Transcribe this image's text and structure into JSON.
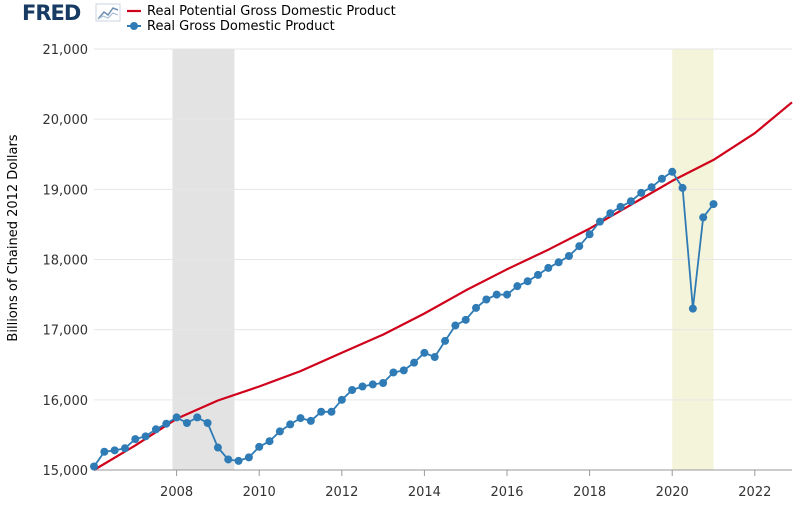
{
  "logo": {
    "text": "FRED",
    "icon": "line-chart-icon",
    "accent": "#173b63"
  },
  "colors": {
    "potential": "#d0021b",
    "actual": "#2f7bb5",
    "grid": "#e6e6e6",
    "recession_2008": "#e3e3e3",
    "recession_2020": "#f4f4da"
  },
  "chart_data": {
    "type": "line",
    "ylabel": "Billions of Chained 2012 Dollars",
    "xlim": [
      2006.0,
      2022.9
    ],
    "ylim": [
      15000,
      21000
    ],
    "x_ticks": [
      2008,
      2010,
      2012,
      2014,
      2016,
      2018,
      2020,
      2022
    ],
    "y_ticks": [
      15000,
      16000,
      17000,
      18000,
      19000,
      20000,
      21000
    ],
    "y_tick_labels": [
      "15,000",
      "16,000",
      "17,000",
      "18,000",
      "19,000",
      "20,000",
      "21,000"
    ],
    "grid": true,
    "legend": "top-left",
    "recessions": [
      [
        2007.9,
        2009.4
      ],
      [
        2020.0,
        2021.0
      ]
    ],
    "series": [
      {
        "name": "Real Potential Gross Domestic Product",
        "marker": false,
        "points": [
          [
            2006.0,
            15000
          ],
          [
            2007.0,
            15350
          ],
          [
            2008.0,
            15730
          ],
          [
            2009.0,
            15990
          ],
          [
            2010.0,
            16190
          ],
          [
            2011.0,
            16410
          ],
          [
            2012.0,
            16670
          ],
          [
            2013.0,
            16930
          ],
          [
            2014.0,
            17230
          ],
          [
            2015.0,
            17560
          ],
          [
            2016.0,
            17860
          ],
          [
            2017.0,
            18140
          ],
          [
            2018.0,
            18440
          ],
          [
            2019.0,
            18780
          ],
          [
            2020.0,
            19120
          ],
          [
            2021.0,
            19420
          ],
          [
            2022.0,
            19800
          ],
          [
            2022.9,
            20240
          ]
        ]
      },
      {
        "name": "Real Gross Domestic Product",
        "marker": true,
        "points": [
          [
            2006.0,
            15050
          ],
          [
            2006.25,
            15260
          ],
          [
            2006.5,
            15280
          ],
          [
            2006.75,
            15310
          ],
          [
            2007.0,
            15440
          ],
          [
            2007.25,
            15480
          ],
          [
            2007.5,
            15580
          ],
          [
            2007.75,
            15660
          ],
          [
            2008.0,
            15750
          ],
          [
            2008.25,
            15670
          ],
          [
            2008.5,
            15750
          ],
          [
            2008.75,
            15670
          ],
          [
            2009.0,
            15320
          ],
          [
            2009.25,
            15150
          ],
          [
            2009.5,
            15130
          ],
          [
            2009.75,
            15180
          ],
          [
            2010.0,
            15330
          ],
          [
            2010.25,
            15410
          ],
          [
            2010.5,
            15550
          ],
          [
            2010.75,
            15650
          ],
          [
            2011.0,
            15740
          ],
          [
            2011.25,
            15700
          ],
          [
            2011.5,
            15830
          ],
          [
            2011.75,
            15830
          ],
          [
            2012.0,
            16000
          ],
          [
            2012.25,
            16140
          ],
          [
            2012.5,
            16190
          ],
          [
            2012.75,
            16220
          ],
          [
            2013.0,
            16240
          ],
          [
            2013.25,
            16390
          ],
          [
            2013.5,
            16420
          ],
          [
            2013.75,
            16530
          ],
          [
            2014.0,
            16670
          ],
          [
            2014.25,
            16610
          ],
          [
            2014.5,
            16840
          ],
          [
            2014.75,
            17060
          ],
          [
            2015.0,
            17140
          ],
          [
            2015.25,
            17310
          ],
          [
            2015.5,
            17430
          ],
          [
            2015.75,
            17500
          ],
          [
            2016.0,
            17500
          ],
          [
            2016.25,
            17620
          ],
          [
            2016.5,
            17690
          ],
          [
            2016.75,
            17780
          ],
          [
            2017.0,
            17880
          ],
          [
            2017.25,
            17960
          ],
          [
            2017.5,
            18050
          ],
          [
            2017.75,
            18190
          ],
          [
            2018.0,
            18360
          ],
          [
            2018.25,
            18540
          ],
          [
            2018.5,
            18660
          ],
          [
            2018.75,
            18750
          ],
          [
            2019.0,
            18830
          ],
          [
            2019.25,
            18950
          ],
          [
            2019.5,
            19030
          ],
          [
            2019.75,
            19150
          ],
          [
            2020.0,
            19250
          ],
          [
            2020.25,
            19020
          ],
          [
            2020.5,
            17300
          ],
          [
            2020.75,
            18600
          ],
          [
            2021.0,
            18790
          ]
        ]
      }
    ]
  }
}
